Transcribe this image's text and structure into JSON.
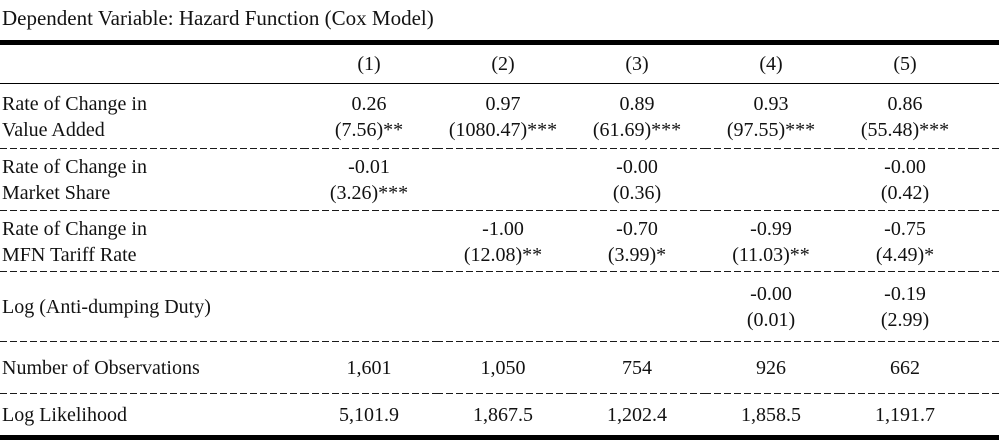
{
  "title": "Dependent Variable: Hazard Function (Cox Model)",
  "colors": {
    "text": "#121212",
    "rules": "#000000",
    "background": "#ffffff"
  },
  "table": {
    "column_headers": [
      "(1)",
      "(2)",
      "(3)",
      "(4)",
      "(5)"
    ],
    "rows": [
      {
        "label_line1": "Rate of Change in",
        "label_line2": "Value Added",
        "cells": [
          {
            "coef": "0.26",
            "stat": "(7.56)**"
          },
          {
            "coef": "0.97",
            "stat": "(1080.47)***"
          },
          {
            "coef": "0.89",
            "stat": "(61.69)***"
          },
          {
            "coef": "0.93",
            "stat": "(97.55)***"
          },
          {
            "coef": "0.86",
            "stat": "(55.48)***"
          }
        ]
      },
      {
        "label_line1": "Rate of Change in",
        "label_line2": "Market Share",
        "cells": [
          {
            "coef": "-0.01",
            "stat": "(3.26)***"
          },
          {
            "coef": "",
            "stat": ""
          },
          {
            "coef": "-0.00",
            "stat": "(0.36)"
          },
          {
            "coef": "",
            "stat": ""
          },
          {
            "coef": "-0.00",
            "stat": "(0.42)"
          }
        ]
      },
      {
        "label_line1": "Rate of Change in",
        "label_line2": "MFN Tariff Rate",
        "cells": [
          {
            "coef": "",
            "stat": ""
          },
          {
            "coef": "-1.00",
            "stat": "(12.08)**"
          },
          {
            "coef": "-0.70",
            "stat": "(3.99)*"
          },
          {
            "coef": "-0.99",
            "stat": "(11.03)**"
          },
          {
            "coef": "-0.75",
            "stat": "(4.49)*"
          }
        ]
      },
      {
        "label_line1": "Log (Anti-dumping Duty)",
        "label_line2": "",
        "cells": [
          {
            "coef": "",
            "stat": ""
          },
          {
            "coef": "",
            "stat": ""
          },
          {
            "coef": "",
            "stat": ""
          },
          {
            "coef": "-0.00",
            "stat": "(0.01)"
          },
          {
            "coef": "-0.19",
            "stat": "(2.99)"
          }
        ]
      }
    ],
    "summary_rows": [
      {
        "label": "Number of Observations",
        "values": [
          "1,601",
          "1,050",
          "754",
          "926",
          "662"
        ]
      },
      {
        "label": "Log Likelihood",
        "values": [
          "5,101.9",
          "1,867.5",
          "1,202.4",
          "1,858.5",
          "1,191.7"
        ]
      }
    ]
  }
}
